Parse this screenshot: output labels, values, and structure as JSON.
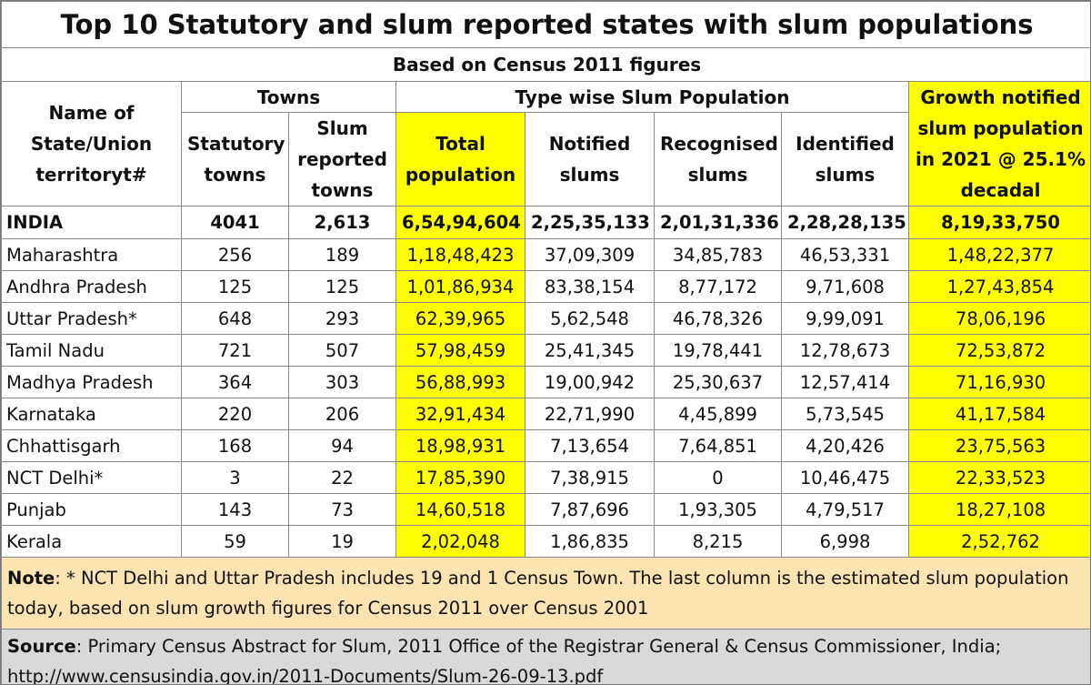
{
  "title": "Top 10 Statutory and slum reported states with slum populations",
  "subtitle": "Based on Census 2011 figures",
  "headers": {
    "name": "Name of State/Union territoryt#",
    "towns_group": "Towns",
    "type_group": "Type wise Slum Population",
    "statutory": "Statutory towns",
    "slum_reported": "Slum reported towns",
    "total": "Total population",
    "notified": "Notified slums",
    "recognised": "Recognised slums",
    "identified": "Identified slums",
    "growth": "Growth notified slum population in 2021 @ 25.1% decadal"
  },
  "india": {
    "name": "INDIA",
    "statutory": "4041",
    "slum_reported": "2,613",
    "total": "6,54,94,604",
    "notified": "2,25,35,133",
    "recognised": "2,01,31,336",
    "identified": "2,28,28,135",
    "growth": "8,19,33,750"
  },
  "rows": [
    {
      "name": "Maharashtra",
      "statutory": "256",
      "slum_reported": "189",
      "total": "1,18,48,423",
      "notified": "37,09,309",
      "recognised": "34,85,783",
      "identified": "46,53,331",
      "growth": "1,48,22,377"
    },
    {
      "name": "Andhra Pradesh",
      "statutory": "125",
      "slum_reported": "125",
      "total": "1,01,86,934",
      "notified": "83,38,154",
      "recognised": "8,77,172",
      "identified": "9,71,608",
      "growth": "1,27,43,854"
    },
    {
      "name": "Uttar Pradesh*",
      "statutory": "648",
      "slum_reported": "293",
      "total": "62,39,965",
      "notified": "5,62,548",
      "recognised": "46,78,326",
      "identified": "9,99,091",
      "growth": "78,06,196"
    },
    {
      "name": "Tamil Nadu",
      "statutory": "721",
      "slum_reported": "507",
      "total": "57,98,459",
      "notified": "25,41,345",
      "recognised": "19,78,441",
      "identified": "12,78,673",
      "growth": "72,53,872"
    },
    {
      "name": "Madhya Pradesh",
      "statutory": "364",
      "slum_reported": "303",
      "total": "56,88,993",
      "notified": "19,00,942",
      "recognised": "25,30,637",
      "identified": "12,57,414",
      "growth": "71,16,930"
    },
    {
      "name": "Karnataka",
      "statutory": "220",
      "slum_reported": "206",
      "total": "32,91,434",
      "notified": "22,71,990",
      "recognised": "4,45,899",
      "identified": "5,73,545",
      "growth": "41,17,584"
    },
    {
      "name": "Chhattisgarh",
      "statutory": "168",
      "slum_reported": "94",
      "total": "18,98,931",
      "notified": "7,13,654",
      "recognised": "7,64,851",
      "identified": "4,20,426",
      "growth": "23,75,563"
    },
    {
      "name": "NCT Delhi*",
      "statutory": "3",
      "slum_reported": "22",
      "total": "17,85,390",
      "notified": "7,38,915",
      "recognised": "0",
      "identified": "10,46,475",
      "growth": "22,33,523"
    },
    {
      "name": "Punjab",
      "statutory": "143",
      "slum_reported": "73",
      "total": "14,60,518",
      "notified": "7,87,696",
      "recognised": "1,93,305",
      "identified": "4,79,517",
      "growth": "18,27,108"
    },
    {
      "name": "Kerala",
      "statutory": "59",
      "slum_reported": "19",
      "total": "2,02,048",
      "notified": "1,86,835",
      "recognised": "8,215",
      "identified": "6,998",
      "growth": "2,52,762"
    }
  ],
  "note": {
    "label": "Note",
    "text": ": * NCT Delhi and Uttar Pradesh includes 19 and 1 Census Town. The last column is the estimated slum population today, based on slum growth figures for Census 2011 over Census 2001"
  },
  "source": {
    "label": "Source",
    "text": ": Primary Census Abstract for Slum, 2011 Office of the Registrar General & Census Commissioner, India; http://www.censusindia.gov.in/2011-Documents/Slum-26-09-13.pdf"
  },
  "colors": {
    "highlight": "#ffff00",
    "note_bg": "#fbe3b2",
    "source_bg": "#d9d9d9"
  }
}
